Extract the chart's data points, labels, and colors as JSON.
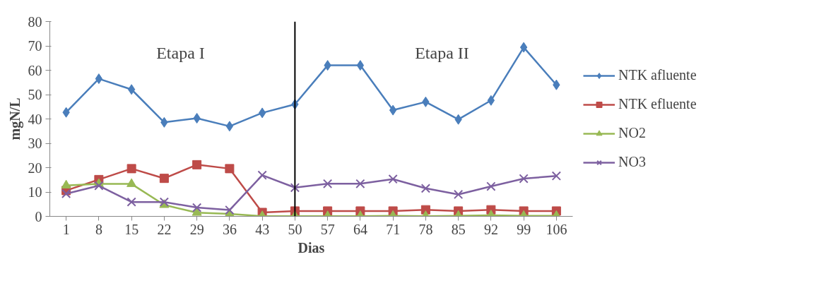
{
  "chart_data": {
    "type": "line",
    "xlabel": "Dias",
    "ylabel": "mgN/L",
    "categories": [
      "1",
      "8",
      "15",
      "22",
      "29",
      "36",
      "43",
      "50",
      "57",
      "64",
      "71",
      "78",
      "85",
      "92",
      "99",
      "106"
    ],
    "series": [
      {
        "name": "NTK afluente",
        "color": "#4a7ebb",
        "marker": "diamond",
        "values": [
          42.7,
          56.5,
          52.1,
          38.6,
          40.3,
          37.0,
          42.5,
          46.0,
          62.0,
          62.0,
          43.6,
          47.0,
          39.8,
          47.6,
          69.4,
          54.0
        ]
      },
      {
        "name": "NTK efluente",
        "color": "#be4b48",
        "marker": "square",
        "values": [
          10.6,
          15.1,
          19.6,
          15.6,
          21.2,
          19.6,
          1.6,
          2.2,
          2.2,
          2.2,
          2.2,
          2.7,
          2.2,
          2.7,
          2.2,
          2.2
        ]
      },
      {
        "name": "NO2",
        "color": "#98b954",
        "marker": "triangle",
        "values": [
          12.7,
          13.3,
          13.3,
          4.7,
          1.5,
          1.0,
          0.1,
          0.1,
          0.1,
          0.1,
          0.2,
          0.1,
          0.2,
          0.4,
          0.2,
          0.2
        ]
      },
      {
        "name": "NO3",
        "color": "#7d60a0",
        "marker": "cross",
        "values": [
          9.3,
          12.6,
          5.9,
          5.9,
          3.6,
          2.6,
          16.9,
          11.8,
          13.4,
          13.4,
          15.3,
          11.5,
          9.0,
          12.3,
          15.5,
          16.6
        ]
      }
    ],
    "ylim": [
      0,
      80
    ],
    "yticks": [
      0,
      10,
      20,
      30,
      40,
      50,
      60,
      70,
      80
    ],
    "ref_lines": [
      {
        "axis": "x",
        "value": "50",
        "color": "#000000"
      }
    ],
    "annotations": [
      "Etapa I",
      "Etapa II"
    ],
    "grid": false,
    "legend": "right"
  }
}
